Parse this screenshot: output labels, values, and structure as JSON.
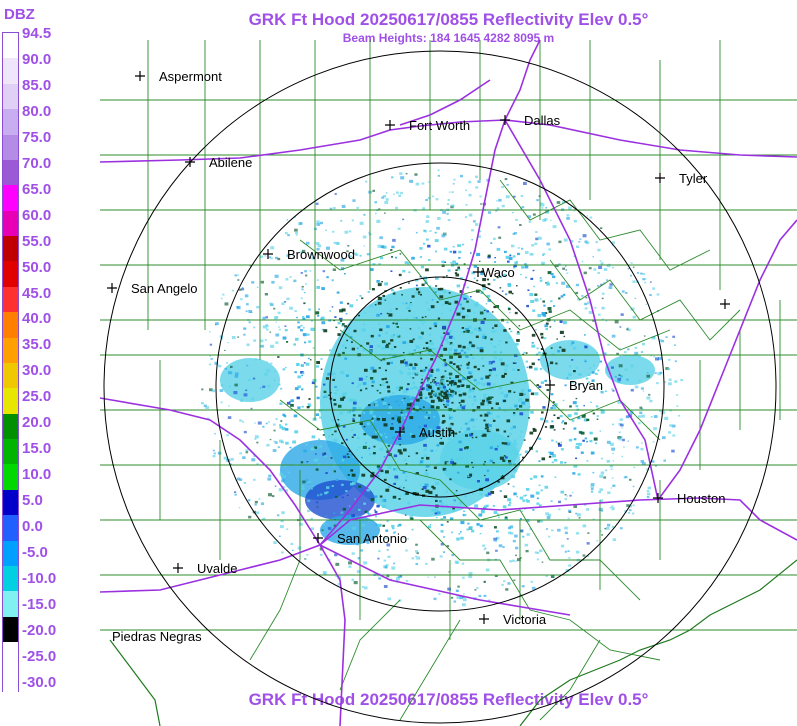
{
  "header": {
    "title": "GRK Ft Hood 20250617/0855 Reflectivity Elev 0.5°",
    "beam_heights": "Beam Heights: 184 1645 4282 8095 m",
    "footer_title": "GRK Ft Hood 20250617/0855 Reflectivity Elev 0.5°"
  },
  "legend": {
    "unit": "DBZ",
    "labels": [
      "94.5",
      "90.0",
      "85.0",
      "80.0",
      "75.0",
      "70.0",
      "65.0",
      "60.0",
      "55.0",
      "50.0",
      "45.0",
      "40.0",
      "35.0",
      "30.0",
      "25.0",
      "20.0",
      "15.0",
      "10.0",
      "5.0",
      "0.0",
      "-5.0",
      "-10.0",
      "-15.0",
      "-20.0",
      "-25.0",
      "-30.0"
    ],
    "colors": [
      "#ffffff",
      "#f0e6fa",
      "#e0d0f5",
      "#c8aef0",
      "#b48ce6",
      "#9b59d6",
      "#ff00ff",
      "#e800b4",
      "#c00000",
      "#e00000",
      "#ff3030",
      "#ff8000",
      "#ffa000",
      "#f0c800",
      "#e6e600",
      "#009000",
      "#00b400",
      "#00d800",
      "#0000c8",
      "#2060ff",
      "#00a0ff",
      "#00d0e0",
      "#80f0f0",
      "#000000",
      "#ffffff",
      "#ffffff"
    ]
  },
  "cities": [
    {
      "name": "Aspermont"
    },
    {
      "name": "Fort Worth"
    },
    {
      "name": "Dallas"
    },
    {
      "name": "Abilene"
    },
    {
      "name": "Tyler"
    },
    {
      "name": "Brownwood"
    },
    {
      "name": "Waco"
    },
    {
      "name": "San Angelo"
    },
    {
      "name": "Bryan"
    },
    {
      "name": "Austin"
    },
    {
      "name": "Houston"
    },
    {
      "name": "San Antonio"
    },
    {
      "name": "Uvalde"
    },
    {
      "name": "Victoria"
    },
    {
      "name": "Piedras Negras"
    },
    {
      "name": ""
    }
  ],
  "colors": {
    "title": "#a050e6",
    "county_lines": "#2e8b2e",
    "highways": "#9b30e0",
    "range_rings": "#000000",
    "echo_light": "#5ad2e8",
    "echo_mid": "#2aa8e6",
    "echo_dark": "#1e50d0"
  }
}
